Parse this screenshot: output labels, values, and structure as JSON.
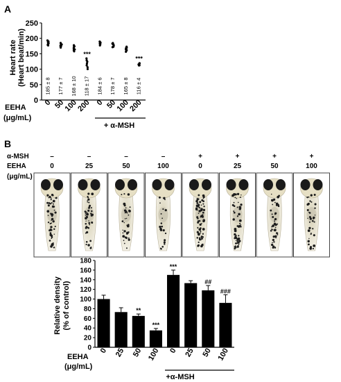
{
  "panel_a": {
    "letter": "A",
    "ylabel_line1": "Heart rate",
    "ylabel_line2": "(Heart beat/min)",
    "x_title_line1": "EEHA",
    "x_title_line2": "(μg/mL)",
    "group_label": "+ α-MSH",
    "y_ticks": [
      "250",
      "200",
      "150",
      "100",
      "50",
      "0"
    ],
    "sig": "***"
  },
  "panel_b": {
    "letter": "B",
    "row_msh_label": "α-MSH",
    "row_eeha_label_line1": "EEHA",
    "row_eeha_label_line2": "(μg/mL)",
    "images": [
      {
        "msh": "–",
        "eeha": "0"
      },
      {
        "msh": "–",
        "eeha": "25"
      },
      {
        "msh": "–",
        "eeha": "50"
      },
      {
        "msh": "–",
        "eeha": "100"
      },
      {
        "msh": "+",
        "eeha": "0"
      },
      {
        "msh": "+",
        "eeha": "25"
      },
      {
        "msh": "+",
        "eeha": "50"
      },
      {
        "msh": "+",
        "eeha": "100"
      }
    ],
    "ylabel_line1": "Relative density",
    "ylabel_line2": "(% of control)",
    "x_title_line1": "EEHA",
    "x_title_line2": "(μg/mL)",
    "group_label": "+α-MSH",
    "y_ticks": [
      "180",
      "160",
      "140",
      "120",
      "100",
      "80",
      "60",
      "40",
      "20",
      "0"
    ]
  },
  "colors": {
    "ink": "#000000",
    "bar": "#000000",
    "frame": "#444444"
  },
  "chart_data": [
    {
      "type": "scatter",
      "title": "",
      "ylabel": "Heart rate (Heart beat/min)",
      "xlabel": "EEHA (μg/mL)",
      "ylim": [
        0,
        250
      ],
      "categories": [
        "0",
        "50",
        "100",
        "200",
        "0",
        "50",
        "100",
        "200"
      ],
      "group": [
        "",
        "",
        "",
        "",
        "+ α-MSH",
        "+ α-MSH",
        "+ α-MSH",
        "+ α-MSH"
      ],
      "mean": [
        185,
        177,
        168,
        118,
        184,
        178,
        165,
        116
      ],
      "sd": [
        8,
        7,
        10,
        17,
        6,
        7,
        8,
        4
      ],
      "labels": [
        "185 ± 8",
        "177 ± 7",
        "168 ± 10",
        "118 ± 17",
        "184 ± 6",
        "178 ± 7",
        "165 ± 8",
        "116 ± 4"
      ],
      "significance": [
        "",
        "",
        "",
        "***",
        "",
        "",
        "",
        "***"
      ]
    },
    {
      "type": "bar",
      "title": "",
      "ylabel": "Relative density (% of control)",
      "xlabel": "EEHA (μg/mL)",
      "ylim": [
        0,
        180
      ],
      "categories": [
        "0",
        "25",
        "50",
        "100",
        "0",
        "25",
        "50",
        "100"
      ],
      "group": [
        "",
        "",
        "",
        "",
        "+α-MSH",
        "+α-MSH",
        "+α-MSH",
        "+α-MSH"
      ],
      "values": [
        100,
        73,
        65,
        35,
        150,
        133,
        118,
        92
      ],
      "errors": [
        8,
        9,
        4,
        4,
        10,
        5,
        10,
        17
      ],
      "significance": [
        "",
        "",
        "**",
        "***",
        "***",
        "",
        "##",
        "###"
      ]
    }
  ]
}
